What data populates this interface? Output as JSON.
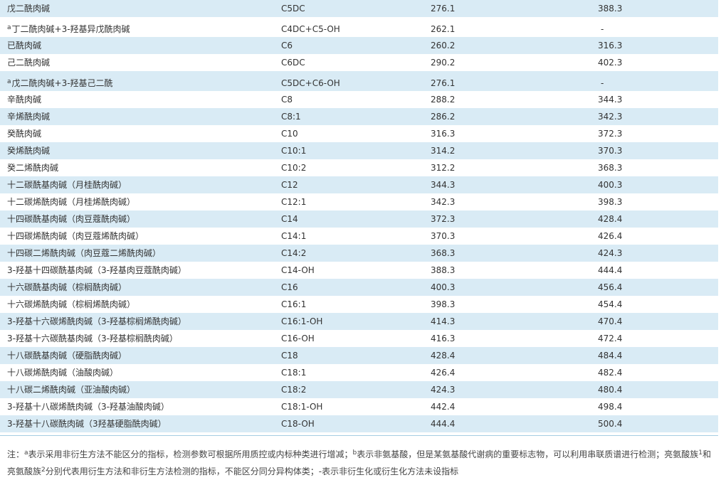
{
  "table": {
    "rows": [
      {
        "name": "戊二酰肉碱",
        "code": "C5DC",
        "v1": "276.1",
        "v2": "388.3",
        "shade": true
      },
      {
        "name_mark": "a",
        "name": "丁二酰肉碱+3-羟基异戊酰肉碱",
        "code": "C4DC+C5-OH",
        "v1": "262.1",
        "v2": "-",
        "shade": false,
        "tall": true
      },
      {
        "name": "已酰肉碱",
        "code": "C6",
        "v1": "260.2",
        "v2": "316.3",
        "shade": true
      },
      {
        "name": "己二酰肉碱",
        "code": "C6DC",
        "v1": "290.2",
        "v2": "402.3",
        "shade": false
      },
      {
        "name_mark": "a",
        "name": "戊二酰肉碱+3-羟基己二酰",
        "code": "C5DC+C6-OH",
        "v1": "276.1",
        "v2": "-",
        "shade": true,
        "tall": true
      },
      {
        "name": "辛酰肉碱",
        "code": "C8",
        "v1": "288.2",
        "v2": "344.3",
        "shade": false
      },
      {
        "name": "辛烯酰肉碱",
        "code": "C8:1",
        "v1": "286.2",
        "v2": "342.3",
        "shade": true
      },
      {
        "name": "癸酰肉碱",
        "code": "C10",
        "v1": "316.3",
        "v2": "372.3",
        "shade": false
      },
      {
        "name": "癸烯酰肉碱",
        "code": "C10:1",
        "v1": "314.2",
        "v2": "370.3",
        "shade": true
      },
      {
        "name": "癸二烯酰肉碱",
        "code": "C10:2",
        "v1": "312.2",
        "v2": "368.3",
        "shade": false
      },
      {
        "name": "十二碳酰基肉碱（月桂酰肉碱）",
        "code": "C12",
        "v1": "344.3",
        "v2": "400.3",
        "shade": true
      },
      {
        "name": "十二碳烯酰肉碱（月桂烯酰肉碱）",
        "code": "C12:1",
        "v1": "342.3",
        "v2": "398.3",
        "shade": false
      },
      {
        "name": "十四碳酰基肉碱（肉豆蔻酰肉碱）",
        "code": "C14",
        "v1": "372.3",
        "v2": "428.4",
        "shade": true
      },
      {
        "name": "十四碳烯酰肉碱（肉豆蔻烯酰肉碱）",
        "code": "C14:1",
        "v1": "370.3",
        "v2": "426.4",
        "shade": false
      },
      {
        "name": "十四碳二烯酰肉碱（肉豆蔻二烯酰肉碱）",
        "code": "C14:2",
        "v1": "368.3",
        "v2": "424.3",
        "shade": true
      },
      {
        "name": "3-羟基十四碳酰基肉碱（3-羟基肉豆蔻酰肉碱）",
        "code": "C14-OH",
        "v1": "388.3",
        "v2": "444.4",
        "shade": false
      },
      {
        "name": "十六碳酰基肉碱（棕榈酰肉碱）",
        "code": "C16",
        "v1": "400.3",
        "v2": "456.4",
        "shade": true
      },
      {
        "name": "十六碳烯酰肉碱（棕榈烯酰肉碱）",
        "code": "C16:1",
        "v1": "398.3",
        "v2": "454.4",
        "shade": false
      },
      {
        "name": "3-羟基十六碳烯酰肉碱（3-羟基棕榈烯酰肉碱）",
        "code": "C16:1-OH",
        "v1": "414.3",
        "v2": "470.4",
        "shade": true
      },
      {
        "name": "3-羟基十六碳酰基肉碱（3-羟基棕榈酰肉碱）",
        "code": "C16-OH",
        "v1": "416.3",
        "v2": "472.4",
        "shade": false
      },
      {
        "name": "十八碳酰基肉碱（硬脂酰肉碱）",
        "code": "C18",
        "v1": "428.4",
        "v2": "484.4",
        "shade": true
      },
      {
        "name": "十八碳烯酰肉碱（油酸肉碱）",
        "code": "C18:1",
        "v1": "426.4",
        "v2": "482.4",
        "shade": false
      },
      {
        "name": "十八碳二烯酰肉碱（亚油酸肉碱）",
        "code": "C18:2",
        "v1": "424.3",
        "v2": "480.4",
        "shade": true
      },
      {
        "name": "3-羟基十八碳烯酰肉碱（3-羟基油酸肉碱）",
        "code": "C18:1-OH",
        "v1": "442.4",
        "v2": "498.4",
        "shade": false
      },
      {
        "name": "3-羟基十八碳酰肉碱（3羟基硬脂酰肉碱）",
        "code": "C18-OH",
        "v1": "444.4",
        "v2": "500.4",
        "shade": true
      }
    ]
  },
  "footnote": {
    "p1": "注：",
    "sup_a": "a",
    "p2": "表示采用非衍生方法不能区分的指标，检测参数可根据所用质控或内标种类进行增减；",
    "sup_b": "b",
    "p3": "表示非氨基酸，但是某氨基酸代谢病的重要标志物，可以利用串联质谱进行检测；亮氨酸族",
    "sup_1": "1",
    "p4": "和",
    "p5": "亮氨酸族",
    "sup_2": "2",
    "p6": "分别代表用衍生方法和非衍生方法检测的指标，不能区分同分异构体类；-表示非衍生化或衍生化方法未设指标"
  },
  "colors": {
    "row_shade": "#d9ebf5",
    "rule": "#a6cde2",
    "text": "#333333"
  }
}
